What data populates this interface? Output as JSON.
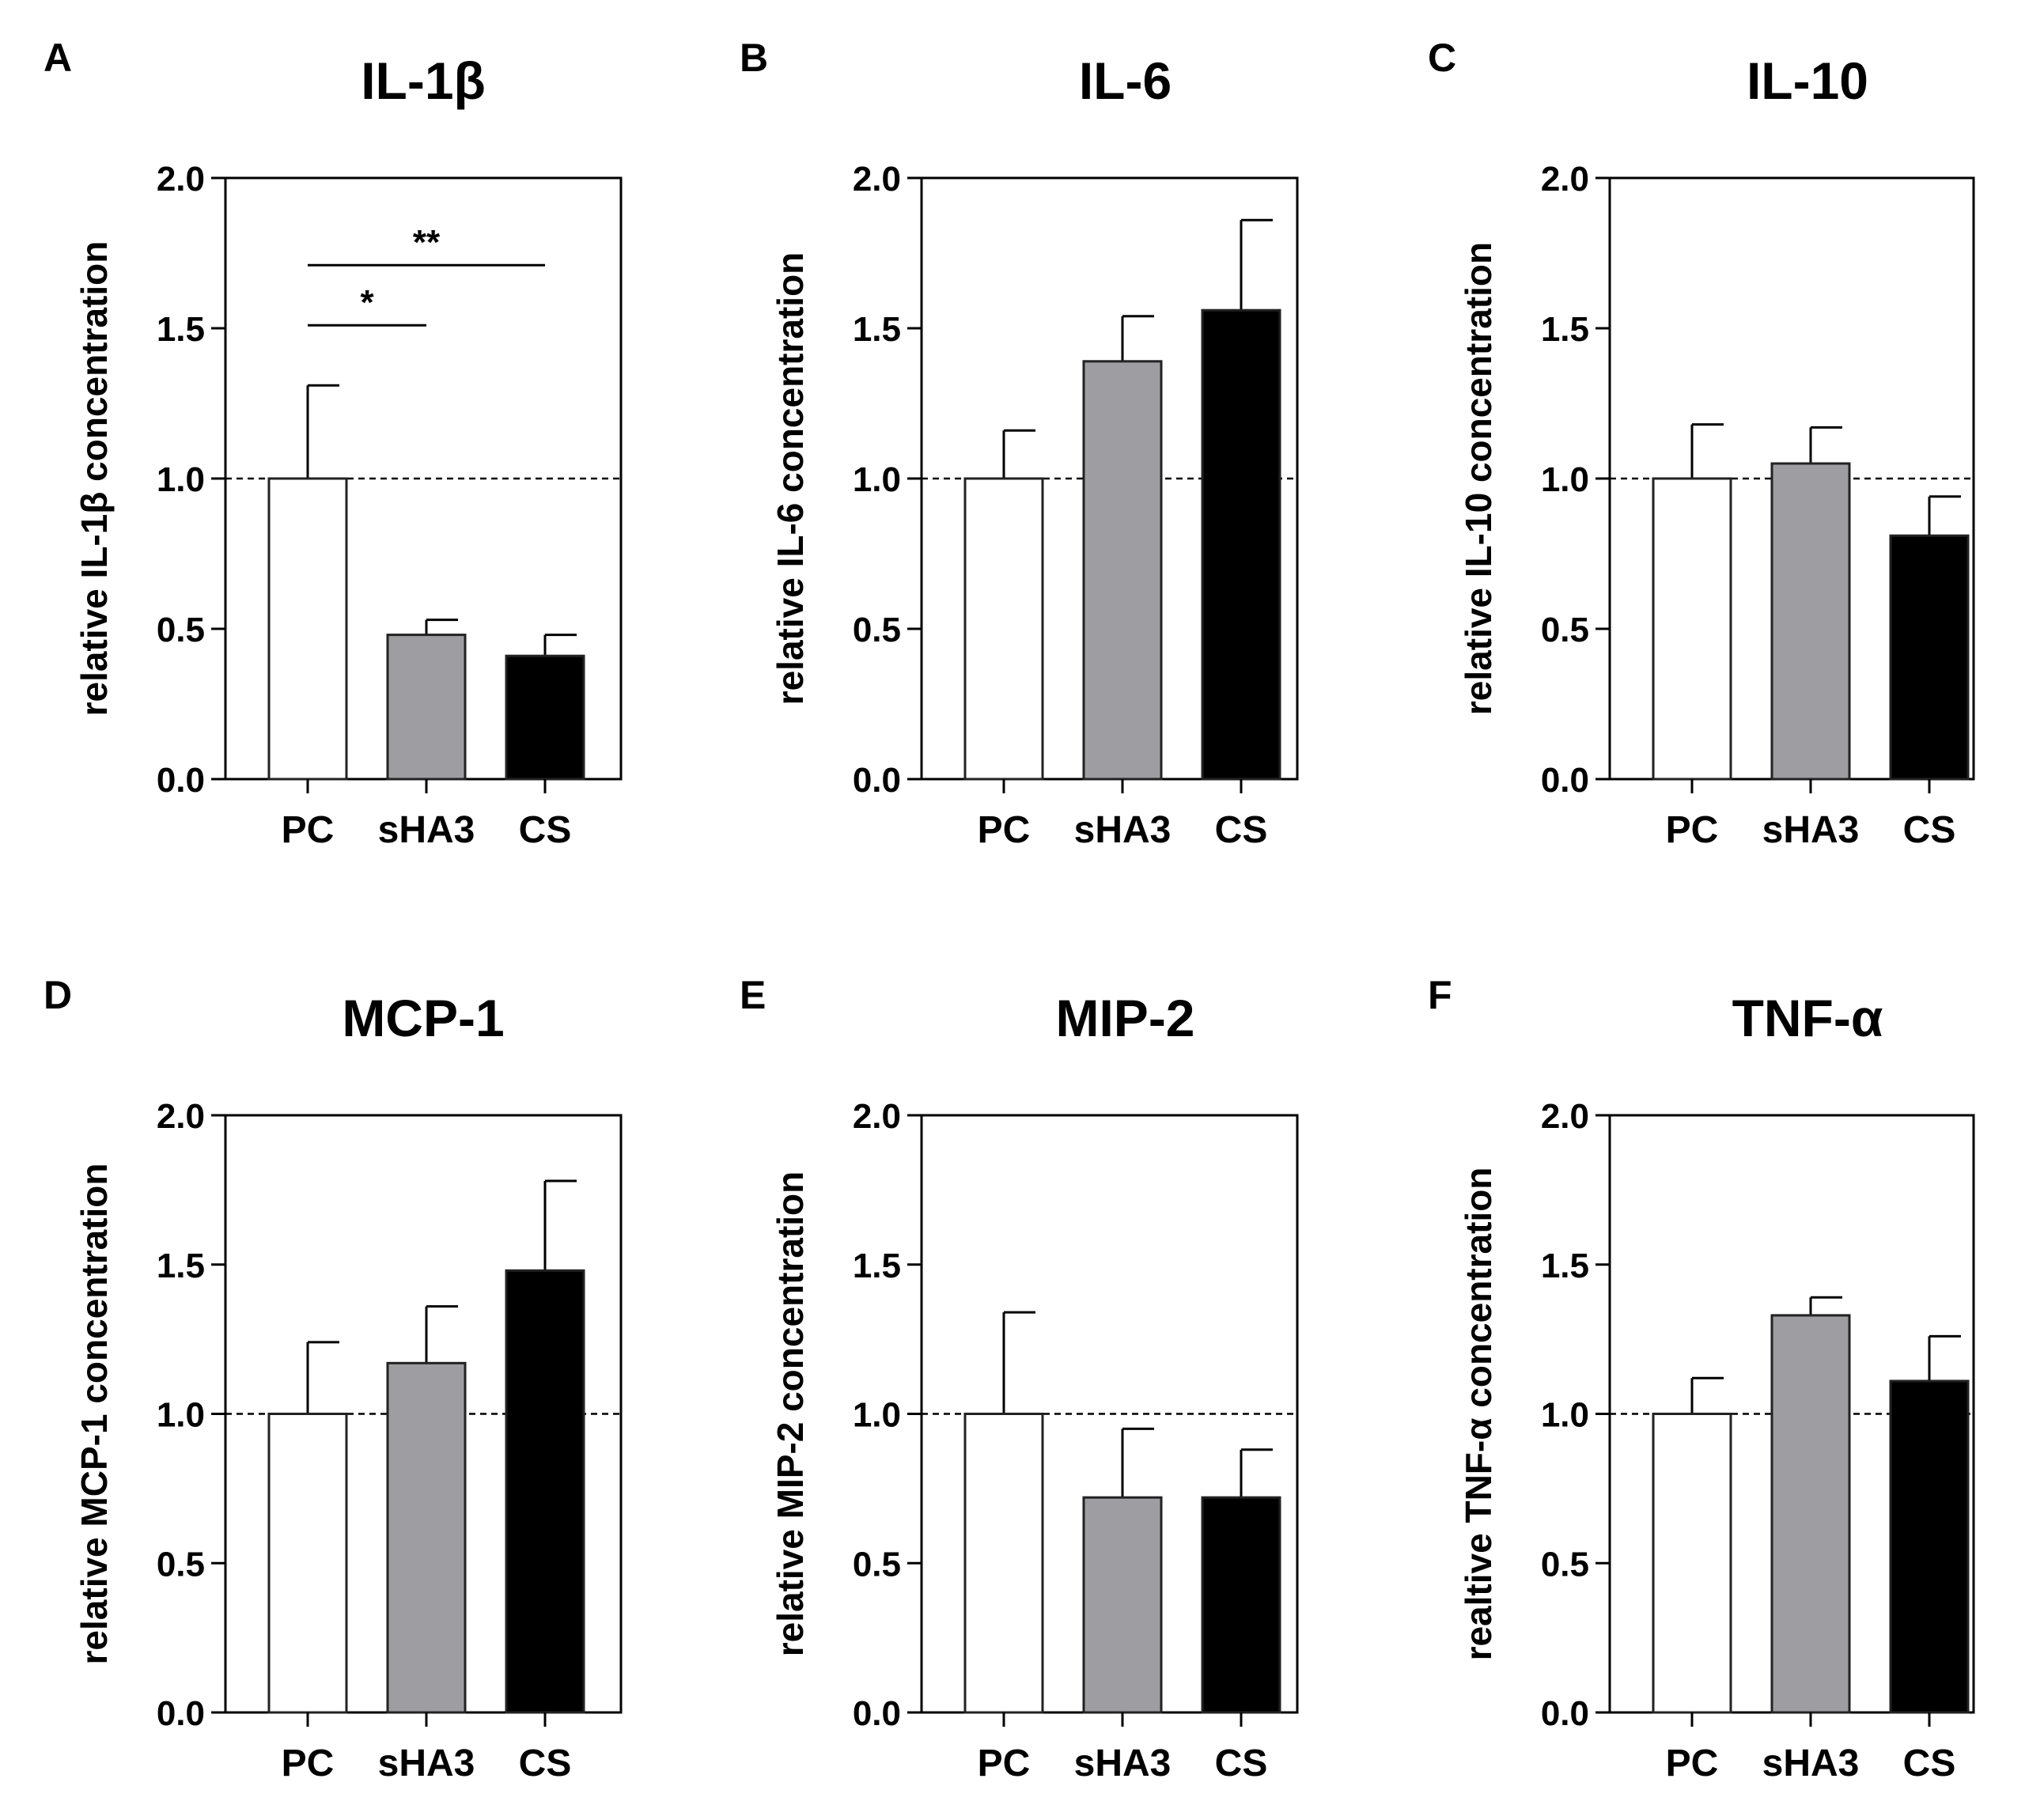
{
  "figure": {
    "colors": {
      "PC": "#ffffff",
      "sHA3": "#9e9ea2",
      "CS": "#000000",
      "axis": "#000000"
    }
  },
  "chart_data": [
    {
      "type": "bar",
      "panel": "A",
      "title": "IL-1β",
      "ylabel": "relative IL-1β concentration",
      "xlabel": "",
      "categories": [
        "PC",
        "sHA3",
        "CS"
      ],
      "values": [
        1.0,
        0.48,
        0.41
      ],
      "errors": [
        0.31,
        0.05,
        0.07
      ],
      "ylim": [
        0,
        2
      ],
      "yticks": [
        "0.0",
        "0.5",
        "1.0",
        "1.5",
        "2.0"
      ],
      "reference_line": 1.0,
      "significance": [
        {
          "from": "PC",
          "to": "sHA3",
          "y": 1.51,
          "label": "*"
        },
        {
          "from": "PC",
          "to": "CS",
          "y": 1.71,
          "label": "**"
        }
      ]
    },
    {
      "type": "bar",
      "panel": "B",
      "title": "IL-6",
      "ylabel": "relative IL-6 concentration",
      "xlabel": "",
      "categories": [
        "PC",
        "sHA3",
        "CS"
      ],
      "values": [
        1.0,
        1.39,
        1.56
      ],
      "errors": [
        0.16,
        0.15,
        0.3
      ],
      "ylim": [
        0,
        2
      ],
      "yticks": [
        "0.0",
        "0.5",
        "1.0",
        "1.5",
        "2.0"
      ],
      "reference_line": 1.0,
      "significance": []
    },
    {
      "type": "bar",
      "panel": "C",
      "title": "IL-10",
      "ylabel": "relative IL-10 concentration",
      "xlabel": "",
      "categories": [
        "PC",
        "sHA3",
        "CS"
      ],
      "values": [
        1.0,
        1.05,
        0.81
      ],
      "errors": [
        0.18,
        0.12,
        0.13
      ],
      "ylim": [
        0,
        2
      ],
      "yticks": [
        "0.0",
        "0.5",
        "1.0",
        "1.5",
        "2.0"
      ],
      "reference_line": 1.0,
      "significance": []
    },
    {
      "type": "bar",
      "panel": "D",
      "title": "MCP-1",
      "ylabel": "relative MCP-1 concentration",
      "xlabel": "",
      "categories": [
        "PC",
        "sHA3",
        "CS"
      ],
      "values": [
        1.0,
        1.17,
        1.48
      ],
      "errors": [
        0.24,
        0.19,
        0.3
      ],
      "ylim": [
        0,
        2
      ],
      "yticks": [
        "0.0",
        "0.5",
        "1.0",
        "1.5",
        "2.0"
      ],
      "reference_line": 1.0,
      "significance": []
    },
    {
      "type": "bar",
      "panel": "E",
      "title": "MIP-2",
      "ylabel": "relative MIP-2 concentration",
      "xlabel": "",
      "categories": [
        "PC",
        "sHA3",
        "CS"
      ],
      "values": [
        1.0,
        0.72,
        0.72
      ],
      "errors": [
        0.34,
        0.23,
        0.16
      ],
      "ylim": [
        0,
        2
      ],
      "yticks": [
        "0.0",
        "0.5",
        "1.0",
        "1.5",
        "2.0"
      ],
      "reference_line": 1.0,
      "significance": []
    },
    {
      "type": "bar",
      "panel": "F",
      "title": "TNF-α",
      "ylabel": "realtive TNF-α concentration",
      "xlabel": "",
      "categories": [
        "PC",
        "sHA3",
        "CS"
      ],
      "values": [
        1.0,
        1.33,
        1.11
      ],
      "errors": [
        0.12,
        0.06,
        0.15
      ],
      "ylim": [
        0,
        2
      ],
      "yticks": [
        "0.0",
        "0.5",
        "1.0",
        "1.5",
        "2.0"
      ],
      "reference_line": 1.0,
      "significance": []
    }
  ]
}
